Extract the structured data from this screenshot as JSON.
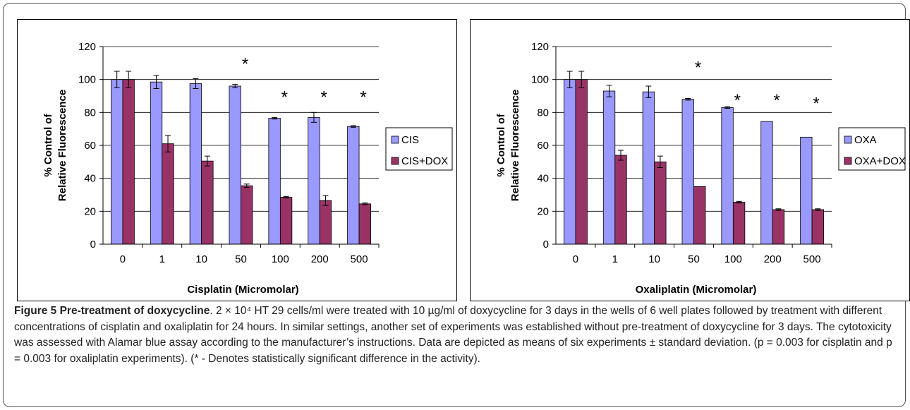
{
  "chart_data": [
    {
      "type": "bar",
      "xlabel": "Cisplatin (Micromolar)",
      "ylabel": "% Control of Relative Fluorescence",
      "ylim": [
        0,
        120
      ],
      "yticks": [
        0,
        20,
        40,
        60,
        80,
        100,
        120
      ],
      "categories": [
        "0",
        "1",
        "10",
        "50",
        "100",
        "200",
        "500"
      ],
      "series": [
        {
          "name": "CIS",
          "values": [
            100,
            98.5,
            97.5,
            96,
            76.5,
            77,
            71.5
          ],
          "errors": [
            5,
            4,
            3,
            1,
            0.5,
            3,
            0.5
          ],
          "color": "#9999ff"
        },
        {
          "name": "CIS+DOX",
          "values": [
            100,
            61,
            50.5,
            35.5,
            28.5,
            26.5,
            24.5
          ],
          "errors": [
            5,
            5,
            3,
            1,
            0.5,
            3,
            0.5
          ],
          "color": "#993366"
        }
      ],
      "annotations": [
        {
          "category": "50",
          "text": "*",
          "y": 112
        },
        {
          "category": "100",
          "text": "*",
          "y": 92
        },
        {
          "category": "200",
          "text": "*",
          "y": 92
        },
        {
          "category": "500",
          "text": "*",
          "y": 92
        }
      ],
      "grid": true,
      "legend": "right"
    },
    {
      "type": "bar",
      "xlabel": "Oxaliplatin (Micromolar)",
      "ylabel": "% Control of Relative Fluorescence",
      "ylim": [
        0,
        120
      ],
      "yticks": [
        0,
        20,
        40,
        60,
        80,
        100,
        120
      ],
      "categories": [
        "0",
        "1",
        "10",
        "50",
        "100",
        "200",
        "500"
      ],
      "series": [
        {
          "name": "OXA",
          "values": [
            100,
            93,
            92.5,
            88,
            83,
            74.5,
            65
          ],
          "errors": [
            5,
            3.5,
            3.5,
            0.5,
            0.5,
            0,
            0
          ],
          "color": "#9999ff"
        },
        {
          "name": "OXA+DOX",
          "values": [
            100,
            54,
            50,
            35,
            25.5,
            21,
            21
          ],
          "errors": [
            5,
            3,
            3.5,
            0,
            0.5,
            0.5,
            0.5
          ],
          "color": "#993366"
        }
      ],
      "annotations": [
        {
          "category": "50",
          "text": "*",
          "y": 110
        },
        {
          "category": "100",
          "text": "*",
          "y": 90
        },
        {
          "category": "200",
          "text": "*",
          "y": 90
        },
        {
          "category": "500",
          "text": "*",
          "y": 88
        }
      ],
      "grid": true,
      "legend": "right"
    }
  ],
  "caption": {
    "label": "Figure 5 Pre-treatment of doxycycline",
    "text": ". 2 × 10⁴ HT 29 cells/ml were treated with 10 µg/ml of doxycycline for 3 days in the wells of 6 well plates followed by treatment with different concentrations of cisplatin and oxaliplatin for 24 hours. In similar settings, another set of experiments was established without pre-treatment of doxycycline for 3 days. The cytotoxicity was assessed with Alamar blue assay according to the manufacturer’s instructions. Data are depicted as means of six experiments ± standard deviation. (p = 0.003 for cisplatin and p = 0.003 for oxaliplatin experiments). (* - Denotes statistically significant difference in the activity)."
  }
}
